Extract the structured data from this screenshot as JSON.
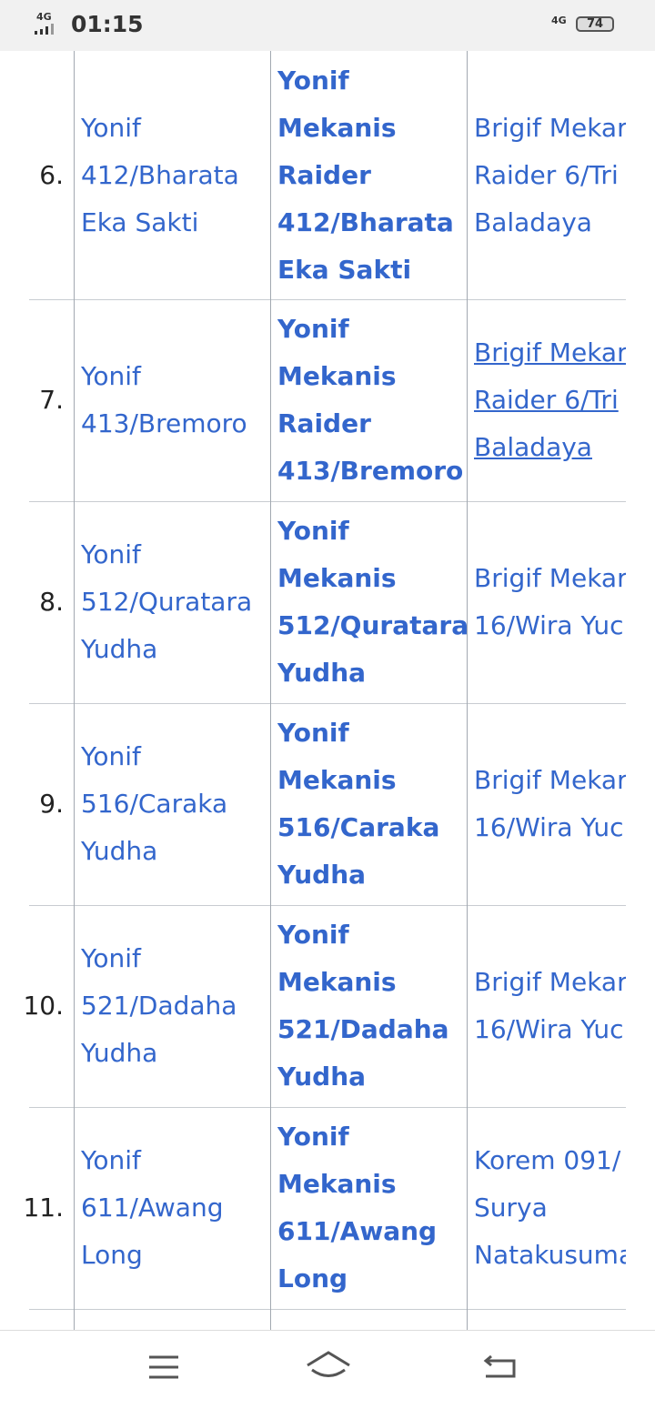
{
  "status_bar": {
    "network_left": "4G",
    "time": "01:15",
    "network_right": "4G",
    "battery": "74"
  },
  "table": {
    "rows": [
      {
        "number": "6.",
        "unit": [
          "Yonif",
          "412/Bharata",
          "Eka Sakti"
        ],
        "new_name": [
          "Yonif",
          "Mekanis",
          "Raider",
          "412/Bharata",
          "Eka Sakti"
        ],
        "brigade": [
          "Brigif Mekar",
          "Raider 6/Tri",
          "Baladaya"
        ]
      },
      {
        "number": "7.",
        "unit": [
          "Yonif",
          "413/Bremoro"
        ],
        "new_name": [
          "Yonif",
          "Mekanis",
          "Raider",
          "413/Bremoro"
        ],
        "brigade": [
          "Brigif Mekar",
          "Raider 6/Tri",
          "Baladaya"
        ]
      },
      {
        "number": "8.",
        "unit": [
          "Yonif",
          "512/Quratara",
          "Yudha"
        ],
        "new_name": [
          "Yonif",
          "Mekanis",
          "512/Quratara",
          "Yudha"
        ],
        "brigade": [
          "Brigif Mekar",
          "16/Wira Yuc"
        ]
      },
      {
        "number": "9.",
        "unit": [
          "Yonif",
          "516/Caraka",
          "Yudha"
        ],
        "new_name": [
          "Yonif",
          "Mekanis",
          "516/Caraka",
          "Yudha"
        ],
        "brigade": [
          "Brigif Mekar",
          "16/Wira Yuc"
        ]
      },
      {
        "number": "10.",
        "unit": [
          "Yonif",
          "521/Dadaha",
          "Yudha"
        ],
        "new_name": [
          "Yonif",
          "Mekanis",
          "521/Dadaha",
          "Yudha"
        ],
        "brigade": [
          "Brigif Mekar",
          "16/Wira Yuc"
        ]
      },
      {
        "number": "11.",
        "unit": [
          "Yonif",
          "611/Awang",
          "Long"
        ],
        "new_name": [
          "Yonif",
          "Mekanis",
          "611/Awang",
          "Long"
        ],
        "brigade": [
          "Korem 091/",
          "Surya",
          "Natakusuma"
        ]
      }
    ]
  }
}
